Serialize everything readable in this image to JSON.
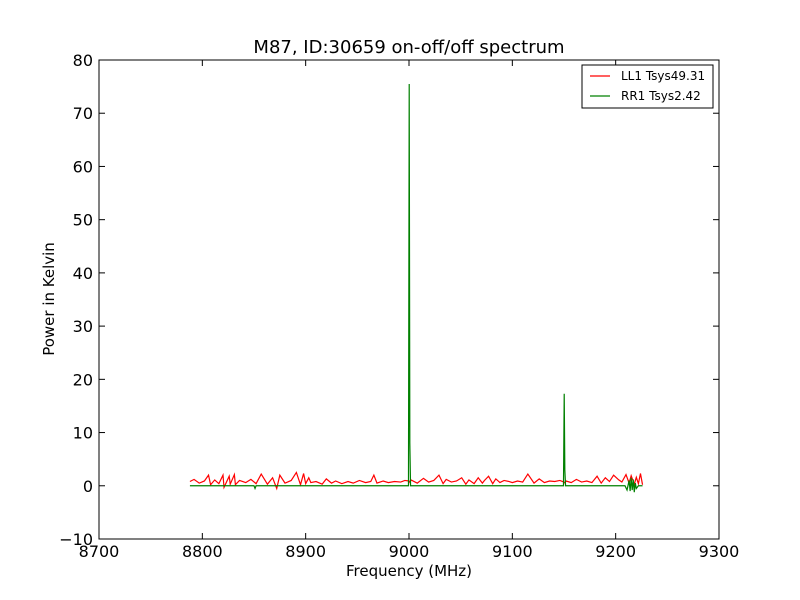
{
  "chart_data": {
    "type": "line",
    "title": "M87, ID:30659 on-off/off spectrum",
    "xlabel": "Frequency (MHz)",
    "ylabel": "Power in Kelvin",
    "xlim": [
      8700,
      9300
    ],
    "ylim": [
      -10,
      80
    ],
    "xticks": [
      8700,
      8800,
      8900,
      9000,
      9100,
      9200,
      9300
    ],
    "yticks": [
      -10,
      0,
      10,
      20,
      30,
      40,
      50,
      60,
      70,
      80
    ],
    "grid": false,
    "legend_position": "top-right",
    "series": [
      {
        "name": "LL1 Tsys49.31",
        "color": "#ff0000",
        "x": [
          8788,
          8792,
          8797,
          8802,
          8806,
          8808,
          8812,
          8816,
          8820,
          8821,
          8826,
          8827,
          8831,
          8832,
          8836,
          8842,
          8847,
          8852,
          8857,
          8863,
          8868,
          8872,
          8875,
          8880,
          8886,
          8891,
          8895,
          8898,
          8900,
          8903,
          8905,
          8910,
          8916,
          8920,
          8925,
          8929,
          8935,
          8941,
          8946,
          8952,
          8958,
          8963,
          8966,
          8969,
          8975,
          8980,
          8986,
          8992,
          8996,
          9000,
          9001,
          9002,
          9008,
          9014,
          9019,
          9024,
          9029,
          9033,
          9036,
          9041,
          9046,
          9051,
          9055,
          9058,
          9063,
          9067,
          9071,
          9073,
          9077,
          9081,
          9084,
          9088,
          9092,
          9097,
          9100,
          9105,
          9110,
          9115,
          9121,
          9126,
          9131,
          9136,
          9141,
          9146,
          9150,
          9151,
          9152,
          9157,
          9162,
          9167,
          9172,
          9177,
          9182,
          9186,
          9190,
          9194,
          9198,
          9203,
          9206,
          9210,
          9213,
          9215,
          9218,
          9220,
          9222,
          9224,
          9226
        ],
        "y": [
          0.8,
          1.2,
          0.5,
          0.9,
          2.0,
          0.2,
          1.1,
          0.4,
          2.0,
          -0.3,
          1.8,
          0.3,
          2.1,
          0.2,
          1.0,
          0.6,
          1.2,
          0.4,
          2.2,
          0.3,
          1.5,
          -0.5,
          2.0,
          0.5,
          1.0,
          2.5,
          0.2,
          2.3,
          0.4,
          1.5,
          0.6,
          0.8,
          0.3,
          1.3,
          0.5,
          0.9,
          0.4,
          0.8,
          0.5,
          1.0,
          0.6,
          0.8,
          2.0,
          0.5,
          0.9,
          0.6,
          0.8,
          0.7,
          1.0,
          0.9,
          0.6,
          1.1,
          0.5,
          1.4,
          0.7,
          1.0,
          2.0,
          0.4,
          1.2,
          0.7,
          0.9,
          1.5,
          0.3,
          1.1,
          0.4,
          1.5,
          0.5,
          1.0,
          1.8,
          0.4,
          1.3,
          0.6,
          1.0,
          0.8,
          0.6,
          0.9,
          0.7,
          2.2,
          0.5,
          1.3,
          0.6,
          0.9,
          0.8,
          1.0,
          0.7,
          0.5,
          0.9,
          0.6,
          1.2,
          0.7,
          0.9,
          0.6,
          1.8,
          0.5,
          1.5,
          0.8,
          2.0,
          1.1,
          0.7,
          2.1,
          0.5,
          1.9,
          0.3,
          1.6,
          0.4,
          2.3,
          0.2
        ]
      },
      {
        "name": "RR1 Tsys2.42",
        "color": "#008000",
        "x": [
          8788,
          8850,
          8851,
          8852,
          8900,
          8999.5,
          9000.2,
          9000.8,
          9001.5,
          9060,
          9090,
          9100,
          9149.5,
          9150.2,
          9150.8,
          9151.5,
          9200,
          9209,
          9211,
          9213,
          9214,
          9215,
          9216,
          9217,
          9218,
          9219,
          9220,
          9222,
          9226
        ],
        "y": [
          0.0,
          0.0,
          -0.5,
          0.0,
          0.0,
          0.0,
          75.5,
          8.0,
          0.0,
          0.0,
          0.0,
          0.0,
          0.0,
          17.3,
          3.0,
          0.0,
          0.0,
          0.0,
          -0.8,
          1.0,
          -1.0,
          1.5,
          -0.8,
          1.2,
          -1.2,
          0.5,
          -0.5,
          0.0,
          0.0
        ]
      }
    ]
  }
}
